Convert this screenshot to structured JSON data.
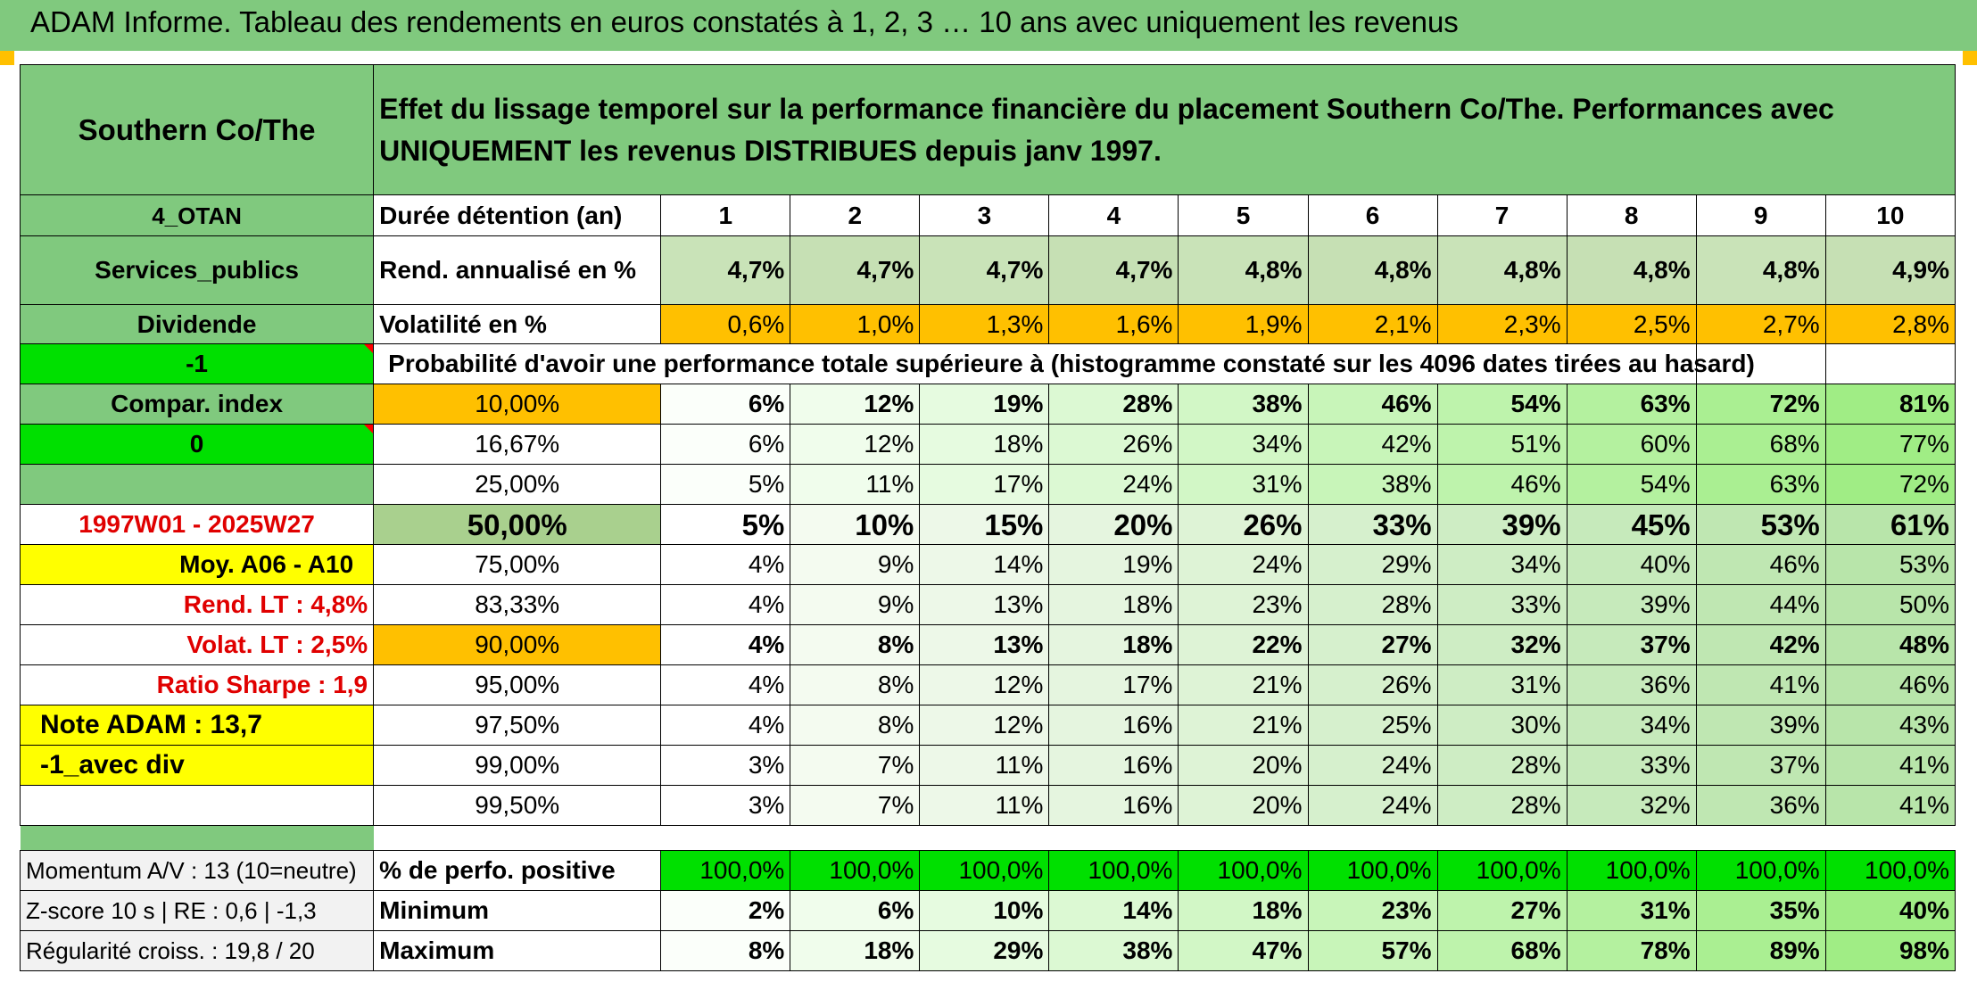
{
  "title": "ADAM Informe. Tableau des rendements en euros constatés à 1, 2, 3 … 10 ans avec uniquement les revenus",
  "colors": {
    "header_green": "#80c97e",
    "bright_green": "#00e000",
    "orange": "#ffc000",
    "yellow": "#ffff00",
    "red_text": "#e00000"
  },
  "left": {
    "name": "Southern Co/The",
    "group": "4_OTAN",
    "sector": "Services_publics",
    "type": "Dividende",
    "val1": "-1",
    "compar": "Compar. index",
    "val2": "0",
    "period": "1997W01 - 2025W27",
    "moy": "Moy. A06 - A10",
    "rend_label": "Rend. LT :",
    "rend_value": "4,8%",
    "volat_label": "Volat. LT :",
    "volat_value": "2,5%",
    "sharpe_label": "Ratio Sharpe :",
    "sharpe_value": "1,9",
    "note": "Note ADAM : 13,7",
    "avec": "-1_avec div"
  },
  "main_header": "Effet du lissage temporel sur la performance financière du placement Southern Co/The. Performances avec UNIQUEMENT les revenus DISTRIBUES depuis janv 1997.",
  "duration_label": "Durée détention (an)",
  "years": [
    "1",
    "2",
    "3",
    "4",
    "5",
    "6",
    "7",
    "8",
    "9",
    "10"
  ],
  "rend_row_label": "Rend. annualisé en %",
  "rend": [
    "4,7%",
    "4,7%",
    "4,7%",
    "4,7%",
    "4,8%",
    "4,8%",
    "4,8%",
    "4,8%",
    "4,8%",
    "4,9%"
  ],
  "volat_row_label": "Volatilité en %",
  "volat": [
    "0,6%",
    "1,0%",
    "1,3%",
    "1,6%",
    "1,9%",
    "2,1%",
    "2,3%",
    "2,5%",
    "2,7%",
    "2,8%"
  ],
  "prob_label": "Probabilité d'avoir une performance totale supérieure à (histogramme constaté sur les 4096 dates tirées au hasard)",
  "prob_rows": [
    {
      "pct": "10,00%",
      "vals": [
        "6%",
        "12%",
        "19%",
        "28%",
        "38%",
        "46%",
        "54%",
        "63%",
        "72%",
        "81%"
      ]
    },
    {
      "pct": "16,67%",
      "vals": [
        "6%",
        "12%",
        "18%",
        "26%",
        "34%",
        "42%",
        "51%",
        "60%",
        "68%",
        "77%"
      ]
    },
    {
      "pct": "25,00%",
      "vals": [
        "5%",
        "11%",
        "17%",
        "24%",
        "31%",
        "38%",
        "46%",
        "54%",
        "63%",
        "72%"
      ]
    },
    {
      "pct": "50,00%",
      "vals": [
        "5%",
        "10%",
        "15%",
        "20%",
        "26%",
        "33%",
        "39%",
        "45%",
        "53%",
        "61%"
      ]
    },
    {
      "pct": "75,00%",
      "vals": [
        "4%",
        "9%",
        "14%",
        "19%",
        "24%",
        "29%",
        "34%",
        "40%",
        "46%",
        "53%"
      ]
    },
    {
      "pct": "83,33%",
      "vals": [
        "4%",
        "9%",
        "13%",
        "18%",
        "23%",
        "28%",
        "33%",
        "39%",
        "44%",
        "50%"
      ]
    },
    {
      "pct": "90,00%",
      "vals": [
        "4%",
        "8%",
        "13%",
        "18%",
        "22%",
        "27%",
        "32%",
        "37%",
        "42%",
        "48%"
      ]
    },
    {
      "pct": "95,00%",
      "vals": [
        "4%",
        "8%",
        "12%",
        "17%",
        "21%",
        "26%",
        "31%",
        "36%",
        "41%",
        "46%"
      ]
    },
    {
      "pct": "97,50%",
      "vals": [
        "4%",
        "8%",
        "12%",
        "16%",
        "21%",
        "25%",
        "30%",
        "34%",
        "39%",
        "43%"
      ]
    },
    {
      "pct": "99,00%",
      "vals": [
        "3%",
        "7%",
        "11%",
        "16%",
        "20%",
        "24%",
        "28%",
        "33%",
        "37%",
        "41%"
      ]
    },
    {
      "pct": "99,50%",
      "vals": [
        "3%",
        "7%",
        "11%",
        "16%",
        "20%",
        "24%",
        "28%",
        "32%",
        "36%",
        "41%"
      ]
    }
  ],
  "bottom": {
    "momentum": "Momentum A/V : 13 (10=neutre)",
    "zscore": "Z-score 10 s | RE : 0,6 | -1,3",
    "regul": "Régularité croiss. : 19,8 / 20",
    "pos_label": "% de perfo. positive",
    "pos": [
      "100,0%",
      "100,0%",
      "100,0%",
      "100,0%",
      "100,0%",
      "100,0%",
      "100,0%",
      "100,0%",
      "100,0%",
      "100,0%"
    ],
    "min_label": "Minimum",
    "min": [
      "2%",
      "6%",
      "10%",
      "14%",
      "18%",
      "23%",
      "27%",
      "31%",
      "35%",
      "40%"
    ],
    "max_label": "Maximum",
    "max": [
      "8%",
      "18%",
      "29%",
      "38%",
      "47%",
      "57%",
      "68%",
      "78%",
      "89%",
      "98%"
    ]
  }
}
